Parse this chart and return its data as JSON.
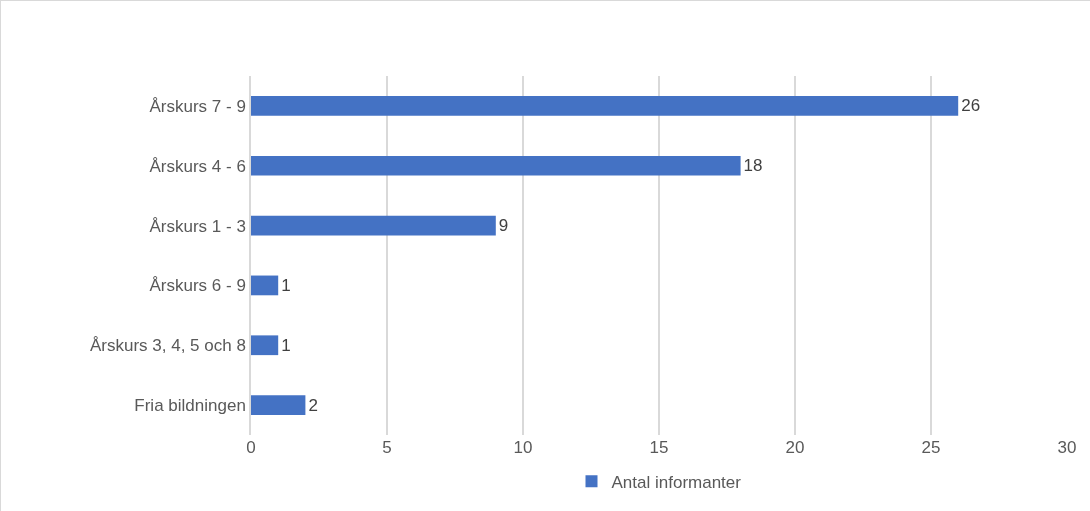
{
  "chart_data": {
    "type": "bar",
    "orientation": "horizontal",
    "categories": [
      "Årskurs 7 - 9",
      "Årskurs 4 - 6",
      "Årskurs 1 - 3",
      "Årskurs 6 - 9",
      "Årskurs 3, 4, 5 och 8",
      "Fria bildningen"
    ],
    "series": [
      {
        "name": "Antal informanter",
        "color": "#4472c4",
        "values": [
          26,
          18,
          9,
          1,
          1,
          2
        ]
      }
    ],
    "xlim": [
      0,
      30
    ],
    "xticks": [
      0,
      5,
      10,
      15,
      20,
      25,
      30
    ],
    "grid": "x",
    "legend": "bottom",
    "data_labels": true
  }
}
